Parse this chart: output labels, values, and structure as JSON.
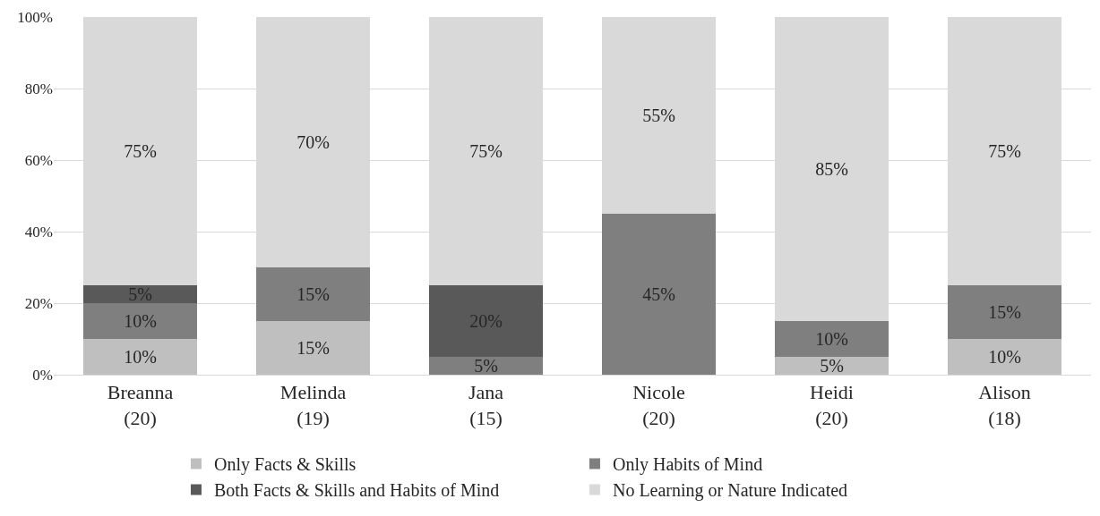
{
  "chart_data": {
    "type": "bar",
    "stacked": true,
    "categories": [
      "Breanna\n(20)",
      "Melinda\n(19)",
      "Jana\n(15)",
      "Nicole\n(20)",
      "Heidi\n(20)",
      "Alison\n(18)"
    ],
    "series": [
      {
        "name": "Only Facts & Skills",
        "color": "#bfbfbf",
        "values": [
          10,
          15,
          0,
          0,
          5,
          10
        ],
        "value_labels": [
          "10%",
          "15%",
          null,
          null,
          "5%",
          "10%"
        ]
      },
      {
        "name": "Only Habits of Mind",
        "color": "#7f7f7f",
        "values": [
          10,
          15,
          5,
          45,
          10,
          15
        ],
        "value_labels": [
          "10%",
          "15%",
          "5%",
          "45%",
          "10%",
          "15%"
        ]
      },
      {
        "name": "Both Facts & Skills and Habits of Mind",
        "color": "#595959",
        "values": [
          5,
          0,
          20,
          0,
          0,
          0
        ],
        "value_labels": [
          "5%",
          null,
          "20%",
          null,
          null,
          null
        ]
      },
      {
        "name": "No Learning or Nature Indicated",
        "color": "#d9d9d9",
        "values": [
          75,
          70,
          75,
          55,
          85,
          75
        ],
        "value_labels": [
          "75%",
          "70%",
          "75%",
          "55%",
          "85%",
          "75%"
        ]
      }
    ],
    "ylim": [
      0,
      100
    ],
    "yticks": [
      {
        "value": 0,
        "label": "0%"
      },
      {
        "value": 20,
        "label": "20%"
      },
      {
        "value": 40,
        "label": "40%"
      },
      {
        "value": 60,
        "label": "60%"
      },
      {
        "value": 80,
        "label": "80%"
      },
      {
        "value": 100,
        "label": "100%"
      }
    ],
    "grid": "y",
    "legend": "bottom"
  }
}
